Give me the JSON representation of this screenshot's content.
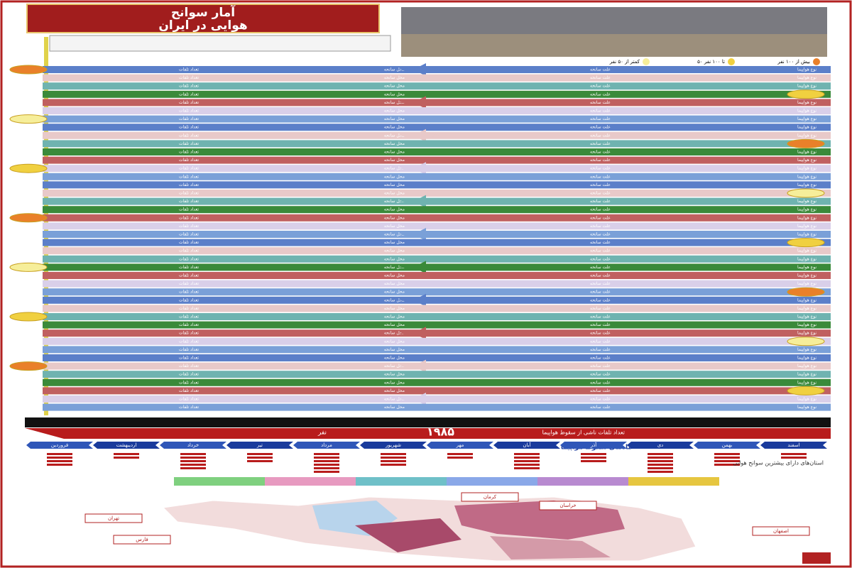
{
  "header": {
    "title_lines": [
      "آمار سوانح",
      "هوایی در ایران"
    ]
  },
  "legend": [
    {
      "label": "بیش از ۱۰۰ نفر"
    },
    {
      "label": "۵۰ تا ۱۰۰ نفر"
    },
    {
      "label": "کمتر از ۵۰ نفر"
    }
  ],
  "table": {
    "column_headers": [
      "نوع هواپیما",
      "علت سانحه",
      "محل سانحه",
      "تعداد تلفات"
    ]
  },
  "summary": {
    "total_label": "تعداد تلفات ناشی از سقوط هواپیما",
    "total_value": "۱۹۸۵",
    "unit": "نفر"
  },
  "months": {
    "title": "ماه‌های سقوط هواپیما",
    "items": [
      "اسفند",
      "بهمن",
      "دی",
      "آذر",
      "آبان",
      "مهر",
      "شهریور",
      "مرداد",
      "تیر",
      "خرداد",
      "اردیبهشت",
      "فروردین"
    ]
  },
  "provinces_title": "استان‌های دارای بیشترین سوانح هوایی",
  "map_labels": [
    "تهران",
    "اصفهان",
    "خراسان",
    "فارس",
    "کرمان"
  ]
}
